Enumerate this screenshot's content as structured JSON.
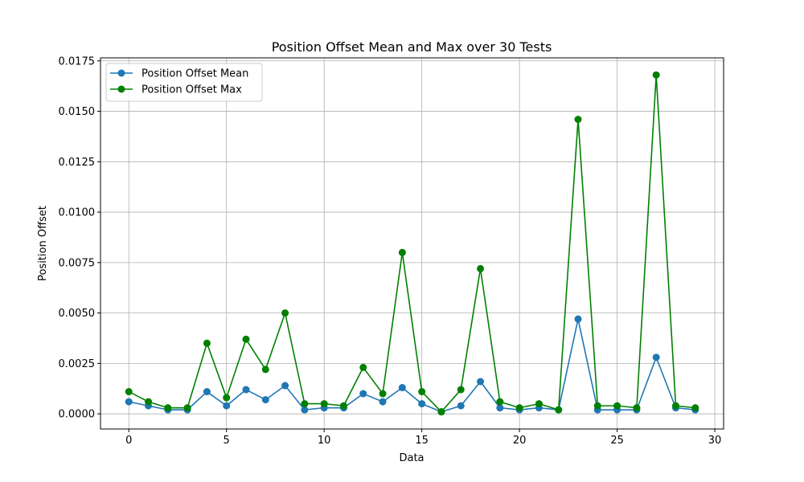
{
  "chart_data": {
    "type": "line",
    "title": "Position Offset Mean and Max over 30 Tests",
    "xlabel": "Data",
    "ylabel": "Position Offset",
    "xlim": [
      -1.45,
      30.45
    ],
    "ylim": [
      -0.00075,
      0.01765
    ],
    "xticks": [
      0,
      5,
      10,
      15,
      20,
      25,
      30
    ],
    "yticks": [
      0.0,
      0.0025,
      0.005,
      0.0075,
      0.01,
      0.0125,
      0.015,
      0.0175
    ],
    "ytick_labels": [
      "0.0000",
      "0.0025",
      "0.0050",
      "0.0075",
      "0.0100",
      "0.0125",
      "0.0150",
      "0.0175"
    ],
    "grid": true,
    "legend_position": "top-left",
    "x": [
      0,
      1,
      2,
      3,
      4,
      5,
      6,
      7,
      8,
      9,
      10,
      11,
      12,
      13,
      14,
      15,
      16,
      17,
      18,
      19,
      20,
      21,
      22,
      23,
      24,
      25,
      26,
      27,
      28,
      29
    ],
    "series": [
      {
        "name": "Position Offset Mean",
        "color": "#1f77b4",
        "values": [
          0.0006,
          0.0004,
          0.0002,
          0.0002,
          0.0011,
          0.0004,
          0.0012,
          0.0007,
          0.0014,
          0.0002,
          0.0003,
          0.0003,
          0.001,
          0.0006,
          0.0013,
          0.0005,
          0.0001,
          0.0004,
          0.0016,
          0.0003,
          0.0002,
          0.0003,
          0.0002,
          0.0047,
          0.0002,
          0.0002,
          0.0002,
          0.0028,
          0.0003,
          0.0002
        ]
      },
      {
        "name": "Position Offset Max",
        "color": "#008000",
        "values": [
          0.0011,
          0.0006,
          0.0003,
          0.0003,
          0.0035,
          0.0008,
          0.0037,
          0.0022,
          0.005,
          0.0005,
          0.0005,
          0.0004,
          0.0023,
          0.001,
          0.008,
          0.0011,
          0.0001,
          0.0012,
          0.0072,
          0.0006,
          0.0003,
          0.0005,
          0.0002,
          0.0146,
          0.0004,
          0.0004,
          0.0003,
          0.0168,
          0.0004,
          0.0003
        ]
      }
    ]
  }
}
